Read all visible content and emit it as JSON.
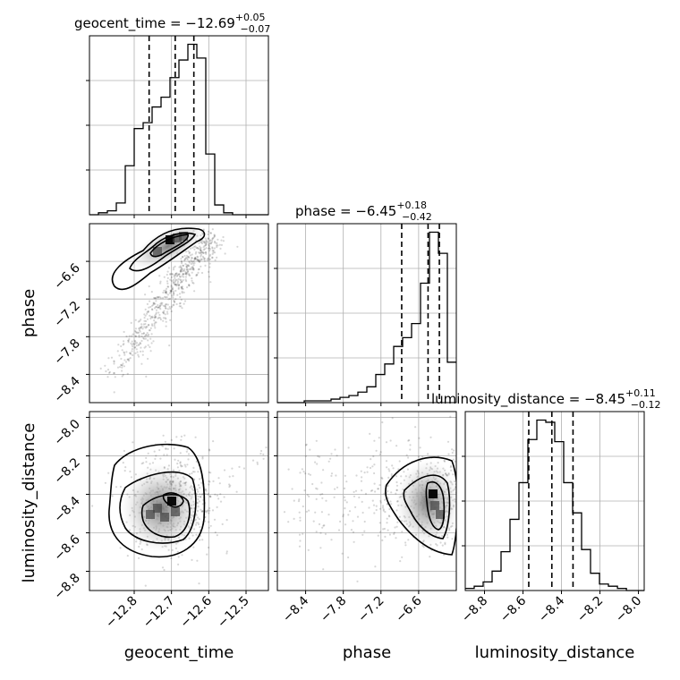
{
  "chart_data": {
    "type": "corner",
    "parameters": [
      "geocent_time",
      "phase",
      "luminosity_distance"
    ],
    "titles": [
      {
        "param": "geocent_time",
        "prefix": "geocent_time = −12.69",
        "sup": "+0.05",
        "sub": "−0.07"
      },
      {
        "param": "phase",
        "prefix": "phase = −6.45",
        "sup": "+0.18",
        "sub": "−0.42"
      },
      {
        "param": "luminosity_distance",
        "prefix": "luminosity_distance = −8.45",
        "sup": "+0.11",
        "sub": "−0.12"
      }
    ],
    "ranges": {
      "geocent_time": [
        -12.92,
        -12.44
      ],
      "phase": [
        -8.85,
        -6.0
      ],
      "luminosity_distance": [
        -8.9,
        -7.97
      ]
    },
    "ticks": {
      "geocent_time": [
        -12.8,
        -12.7,
        -12.6,
        -12.5
      ],
      "phase": [
        -8.4,
        -7.8,
        -7.2,
        -6.6
      ],
      "luminosity_distance": [
        -8.8,
        -8.6,
        -8.4,
        -8.2,
        -8.0
      ]
    },
    "tick_labels": {
      "geocent_time": [
        "−12.8",
        "−12.7",
        "−12.6",
        "−12.5"
      ],
      "phase": [
        "−8.4",
        "−7.8",
        "−7.2",
        "−6.6"
      ],
      "luminosity_distance": [
        "−8.8",
        "−8.6",
        "−8.4",
        "−8.2",
        "−8.0"
      ]
    },
    "quantiles": {
      "geocent_time": [
        -12.76,
        -12.69,
        -12.64
      ],
      "phase": [
        -6.87,
        -6.45,
        -6.27
      ],
      "luminosity_distance": [
        -8.57,
        -8.45,
        -8.34
      ]
    },
    "histograms": {
      "geocent_time": {
        "edges": [
          -12.92,
          -12.896,
          -12.872,
          -12.848,
          -12.824,
          -12.8,
          -12.776,
          -12.752,
          -12.728,
          -12.704,
          -12.68,
          -12.656,
          -12.632,
          -12.608,
          -12.584,
          -12.56,
          -12.536,
          -12.512,
          -12.488,
          -12.464,
          -12.44
        ],
        "counts": [
          0,
          1,
          2,
          6,
          25,
          44,
          47,
          55,
          60,
          70,
          79,
          87,
          80,
          31,
          5,
          1,
          0,
          0,
          0,
          0
        ]
      },
      "phase": {
        "edges": [
          -8.85,
          -8.7075,
          -8.565,
          -8.4225,
          -8.28,
          -8.1375,
          -7.995,
          -7.8525,
          -7.71,
          -7.5675,
          -7.425,
          -7.2825,
          -7.14,
          -6.9975,
          -6.855,
          -6.7125,
          -6.57,
          -6.4275,
          -6.285,
          -6.1425,
          -6.0
        ],
        "counts": [
          0,
          0,
          0,
          1,
          1,
          1,
          2,
          3,
          4,
          6,
          9,
          16,
          22,
          32,
          37,
          45,
          68,
          97,
          85,
          23
        ]
      },
      "luminosity_distance": {
        "edges": [
          -8.9,
          -8.8535,
          -8.807,
          -8.7605,
          -8.714,
          -8.6675,
          -8.621,
          -8.5745,
          -8.528,
          -8.4815,
          -8.435,
          -8.3885,
          -8.342,
          -8.2955,
          -8.249,
          -8.2025,
          -8.156,
          -8.109,
          -8.0625,
          -8.016,
          -7.97
        ],
        "counts": [
          1,
          2,
          4,
          9,
          18,
          33,
          50,
          70,
          79,
          78,
          69,
          50,
          36,
          19,
          8,
          3,
          2,
          1,
          0,
          0
        ]
      }
    },
    "density_2d": {
      "phase_vs_geocent_time": {
        "x": "geocent_time",
        "y": "phase",
        "peak": [
          -12.67,
          -6.42
        ]
      },
      "luminosity_distance_vs_geocent_time": {
        "x": "geocent_time",
        "y": "luminosity_distance",
        "peak": [
          -12.66,
          -8.44
        ]
      },
      "luminosity_distance_vs_phase": {
        "x": "phase",
        "y": "luminosity_distance",
        "peak": [
          -6.35,
          -8.42
        ]
      }
    },
    "grid": true
  }
}
